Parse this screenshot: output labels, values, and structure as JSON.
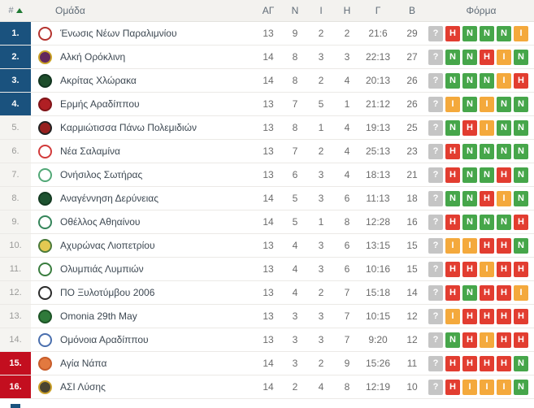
{
  "header": {
    "rank_label": "#",
    "team_label": "Ομάδα",
    "stat_labels": [
      "ΑΓ",
      "Ν",
      "Ι",
      "Η",
      "Γ",
      "Β"
    ],
    "form_label": "Φόρμα"
  },
  "colors": {
    "promotion_zone": "#1a527e",
    "relegation_zone": "#c30e1f",
    "win_badge": "#46a64a",
    "loss_badge": "#e23d30",
    "draw_badge": "#f4a93c",
    "unknown_badge": "#c5c5c5",
    "header_bg": "#f3f2ef"
  },
  "legend": {
    "swatch_color": "#1a527e"
  },
  "teams": [
    {
      "rank": "1.",
      "zone": "promotion",
      "name": "Ένωσις Νέων Παραλιμνίου",
      "gp": "13",
      "w": "9",
      "d": "2",
      "l": "2",
      "goals": "21:6",
      "pts": "29",
      "logo_colors": [
        "#ffffff",
        "#b5342f"
      ],
      "form": [
        {
          "letter": "?",
          "result": "unknown"
        },
        {
          "letter": "Η",
          "result": "loss"
        },
        {
          "letter": "Ν",
          "result": "win"
        },
        {
          "letter": "Ν",
          "result": "win"
        },
        {
          "letter": "Ν",
          "result": "win"
        },
        {
          "letter": "Ι",
          "result": "draw"
        }
      ]
    },
    {
      "rank": "2.",
      "zone": "promotion",
      "name": "Αλκή Ορόκλινη",
      "gp": "14",
      "w": "8",
      "d": "3",
      "l": "3",
      "goals": "22:13",
      "pts": "27",
      "logo_colors": [
        "#63275c",
        "#c9a227"
      ],
      "form": [
        {
          "letter": "?",
          "result": "unknown"
        },
        {
          "letter": "Ν",
          "result": "win"
        },
        {
          "letter": "Ν",
          "result": "win"
        },
        {
          "letter": "Η",
          "result": "loss"
        },
        {
          "letter": "Ι",
          "result": "draw"
        },
        {
          "letter": "Ν",
          "result": "win"
        }
      ]
    },
    {
      "rank": "3.",
      "zone": "promotion",
      "name": "Ακρίτας Χλώρακα",
      "gp": "14",
      "w": "8",
      "d": "2",
      "l": "4",
      "goals": "20:13",
      "pts": "26",
      "logo_colors": [
        "#1d4d2b",
        "#123520"
      ],
      "form": [
        {
          "letter": "?",
          "result": "unknown"
        },
        {
          "letter": "Ν",
          "result": "win"
        },
        {
          "letter": "Ν",
          "result": "win"
        },
        {
          "letter": "Ν",
          "result": "win"
        },
        {
          "letter": "Ι",
          "result": "draw"
        },
        {
          "letter": "Η",
          "result": "loss"
        }
      ]
    },
    {
      "rank": "4.",
      "zone": "promotion",
      "name": "Ερμής Αραδίππου",
      "gp": "13",
      "w": "7",
      "d": "5",
      "l": "1",
      "goals": "21:12",
      "pts": "26",
      "logo_colors": [
        "#b01f24",
        "#801418"
      ],
      "form": [
        {
          "letter": "?",
          "result": "unknown"
        },
        {
          "letter": "Ι",
          "result": "draw"
        },
        {
          "letter": "Ν",
          "result": "win"
        },
        {
          "letter": "Ι",
          "result": "draw"
        },
        {
          "letter": "Ν",
          "result": "win"
        },
        {
          "letter": "Ν",
          "result": "win"
        }
      ]
    },
    {
      "rank": "5.",
      "zone": "mid",
      "name": "Καρμιώτισσα Πάνω Πολεμιδιών",
      "gp": "13",
      "w": "8",
      "d": "1",
      "l": "4",
      "goals": "19:13",
      "pts": "25",
      "logo_colors": [
        "#97201f",
        "#222222"
      ],
      "form": [
        {
          "letter": "?",
          "result": "unknown"
        },
        {
          "letter": "Ν",
          "result": "win"
        },
        {
          "letter": "Η",
          "result": "loss"
        },
        {
          "letter": "Ι",
          "result": "draw"
        },
        {
          "letter": "Ν",
          "result": "win"
        },
        {
          "letter": "Ν",
          "result": "win"
        }
      ]
    },
    {
      "rank": "6.",
      "zone": "mid",
      "name": "Νέα Σαλαμίνα",
      "gp": "13",
      "w": "7",
      "d": "2",
      "l": "4",
      "goals": "25:13",
      "pts": "23",
      "logo_colors": [
        "#ffffff",
        "#d23b3b"
      ],
      "form": [
        {
          "letter": "?",
          "result": "unknown"
        },
        {
          "letter": "Η",
          "result": "loss"
        },
        {
          "letter": "Ν",
          "result": "win"
        },
        {
          "letter": "Ν",
          "result": "win"
        },
        {
          "letter": "Ν",
          "result": "win"
        },
        {
          "letter": "Ν",
          "result": "win"
        }
      ]
    },
    {
      "rank": "7.",
      "zone": "mid",
      "name": "Ονήσιλος Σωτήρας",
      "gp": "13",
      "w": "6",
      "d": "3",
      "l": "4",
      "goals": "18:13",
      "pts": "21",
      "logo_colors": [
        "#ffffff",
        "#52a877"
      ],
      "form": [
        {
          "letter": "?",
          "result": "unknown"
        },
        {
          "letter": "Η",
          "result": "loss"
        },
        {
          "letter": "Ν",
          "result": "win"
        },
        {
          "letter": "Ν",
          "result": "win"
        },
        {
          "letter": "Η",
          "result": "loss"
        },
        {
          "letter": "Ν",
          "result": "win"
        }
      ]
    },
    {
      "rank": "8.",
      "zone": "mid",
      "name": "Αναγέννηση Δερύνειας",
      "gp": "14",
      "w": "5",
      "d": "3",
      "l": "6",
      "goals": "11:13",
      "pts": "18",
      "logo_colors": [
        "#1d5230",
        "#143b22"
      ],
      "form": [
        {
          "letter": "?",
          "result": "unknown"
        },
        {
          "letter": "Ν",
          "result": "win"
        },
        {
          "letter": "Ν",
          "result": "win"
        },
        {
          "letter": "Η",
          "result": "loss"
        },
        {
          "letter": "Ι",
          "result": "draw"
        },
        {
          "letter": "Ν",
          "result": "win"
        }
      ]
    },
    {
      "rank": "9.",
      "zone": "mid",
      "name": "Οθέλλος Αθηαίνου",
      "gp": "14",
      "w": "5",
      "d": "1",
      "l": "8",
      "goals": "12:28",
      "pts": "16",
      "logo_colors": [
        "#ffffff",
        "#35855a"
      ],
      "form": [
        {
          "letter": "?",
          "result": "unknown"
        },
        {
          "letter": "Η",
          "result": "loss"
        },
        {
          "letter": "Ν",
          "result": "win"
        },
        {
          "letter": "Ν",
          "result": "win"
        },
        {
          "letter": "Ν",
          "result": "win"
        },
        {
          "letter": "Η",
          "result": "loss"
        }
      ]
    },
    {
      "rank": "10.",
      "zone": "mid",
      "name": "Αχυρώνας Λιοπετρίου",
      "gp": "13",
      "w": "4",
      "d": "3",
      "l": "6",
      "goals": "13:15",
      "pts": "15",
      "logo_colors": [
        "#e3c952",
        "#4c7a3a"
      ],
      "form": [
        {
          "letter": "?",
          "result": "unknown"
        },
        {
          "letter": "Ι",
          "result": "draw"
        },
        {
          "letter": "Ι",
          "result": "draw"
        },
        {
          "letter": "Η",
          "result": "loss"
        },
        {
          "letter": "Η",
          "result": "loss"
        },
        {
          "letter": "Ν",
          "result": "win"
        }
      ]
    },
    {
      "rank": "11.",
      "zone": "mid",
      "name": "Ολυμπιάς Λυμπιών",
      "gp": "13",
      "w": "4",
      "d": "3",
      "l": "6",
      "goals": "10:16",
      "pts": "15",
      "logo_colors": [
        "#ffffff",
        "#3a7d3f"
      ],
      "form": [
        {
          "letter": "?",
          "result": "unknown"
        },
        {
          "letter": "Η",
          "result": "loss"
        },
        {
          "letter": "Η",
          "result": "loss"
        },
        {
          "letter": "Ι",
          "result": "draw"
        },
        {
          "letter": "Η",
          "result": "loss"
        },
        {
          "letter": "Η",
          "result": "loss"
        }
      ]
    },
    {
      "rank": "12.",
      "zone": "mid",
      "name": "ΠΟ Ξυλοτύμβου 2006",
      "gp": "13",
      "w": "4",
      "d": "2",
      "l": "7",
      "goals": "15:18",
      "pts": "14",
      "logo_colors": [
        "#ffffff",
        "#2b2b2b"
      ],
      "form": [
        {
          "letter": "?",
          "result": "unknown"
        },
        {
          "letter": "Η",
          "result": "loss"
        },
        {
          "letter": "Ν",
          "result": "win"
        },
        {
          "letter": "Η",
          "result": "loss"
        },
        {
          "letter": "Η",
          "result": "loss"
        },
        {
          "letter": "Ι",
          "result": "draw"
        }
      ]
    },
    {
      "rank": "13.",
      "zone": "mid",
      "name": "Omonia 29th May",
      "gp": "13",
      "w": "3",
      "d": "3",
      "l": "7",
      "goals": "10:15",
      "pts": "12",
      "logo_colors": [
        "#2f7a3a",
        "#1d5426"
      ],
      "form": [
        {
          "letter": "?",
          "result": "unknown"
        },
        {
          "letter": "Ι",
          "result": "draw"
        },
        {
          "letter": "Η",
          "result": "loss"
        },
        {
          "letter": "Η",
          "result": "loss"
        },
        {
          "letter": "Η",
          "result": "loss"
        },
        {
          "letter": "Η",
          "result": "loss"
        }
      ]
    },
    {
      "rank": "14.",
      "zone": "mid",
      "name": "Ομόνοια Αραδίππου",
      "gp": "13",
      "w": "3",
      "d": "3",
      "l": "7",
      "goals": "9:20",
      "pts": "12",
      "logo_colors": [
        "#ffffff",
        "#4a6fae"
      ],
      "form": [
        {
          "letter": "?",
          "result": "unknown"
        },
        {
          "letter": "Ν",
          "result": "win"
        },
        {
          "letter": "Η",
          "result": "loss"
        },
        {
          "letter": "Ι",
          "result": "draw"
        },
        {
          "letter": "Η",
          "result": "loss"
        },
        {
          "letter": "Η",
          "result": "loss"
        }
      ]
    },
    {
      "rank": "15.",
      "zone": "relegation",
      "name": "Αγία Νάπα",
      "gp": "14",
      "w": "3",
      "d": "2",
      "l": "9",
      "goals": "15:26",
      "pts": "11",
      "logo_colors": [
        "#e2793f",
        "#c75c2a"
      ],
      "form": [
        {
          "letter": "?",
          "result": "unknown"
        },
        {
          "letter": "Η",
          "result": "loss"
        },
        {
          "letter": "Η",
          "result": "loss"
        },
        {
          "letter": "Η",
          "result": "loss"
        },
        {
          "letter": "Η",
          "result": "loss"
        },
        {
          "letter": "Ν",
          "result": "win"
        }
      ]
    },
    {
      "rank": "16.",
      "zone": "relegation",
      "name": "ΑΣΙ Λύσης",
      "gp": "14",
      "w": "2",
      "d": "4",
      "l": "8",
      "goals": "12:19",
      "pts": "10",
      "logo_colors": [
        "#4a4430",
        "#caa12d"
      ],
      "form": [
        {
          "letter": "?",
          "result": "unknown"
        },
        {
          "letter": "Η",
          "result": "loss"
        },
        {
          "letter": "Ι",
          "result": "draw"
        },
        {
          "letter": "Ι",
          "result": "draw"
        },
        {
          "letter": "Ι",
          "result": "draw"
        },
        {
          "letter": "Ν",
          "result": "win"
        }
      ]
    }
  ]
}
